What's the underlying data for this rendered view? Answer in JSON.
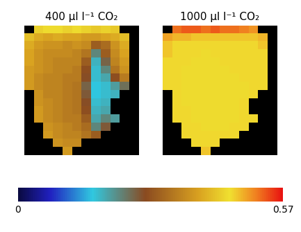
{
  "chart_data": [
    {
      "type": "heatmap",
      "title": "400 µl l⁻¹ CO₂",
      "tick_labels": false,
      "cells": [
        [
          null,
          0.44,
          0.45,
          0.45,
          0.44,
          0.45,
          0.44,
          0.43,
          0.44,
          0.43,
          null,
          null
        ],
        [
          0.42,
          0.4,
          0.39,
          0.4,
          0.39,
          0.39,
          0.38,
          0.38,
          0.39,
          0.4,
          0.42,
          null
        ],
        [
          0.4,
          0.38,
          0.37,
          0.37,
          0.36,
          0.37,
          0.36,
          0.3,
          0.32,
          0.37,
          0.4,
          null
        ],
        [
          0.39,
          0.37,
          0.36,
          0.36,
          0.36,
          0.35,
          0.33,
          0.22,
          0.3,
          0.36,
          0.39,
          null
        ],
        [
          0.39,
          0.37,
          0.36,
          0.35,
          0.35,
          0.35,
          0.3,
          0.18,
          0.25,
          0.35,
          0.38,
          null
        ],
        [
          0.38,
          0.37,
          0.36,
          0.35,
          0.35,
          0.34,
          0.28,
          0.17,
          0.22,
          0.33,
          0.37,
          null
        ],
        [
          0.38,
          0.36,
          0.35,
          0.35,
          0.34,
          0.34,
          0.27,
          0.17,
          0.19,
          0.28,
          0.34,
          null
        ],
        [
          0.38,
          0.36,
          0.35,
          0.35,
          0.34,
          0.33,
          0.25,
          0.16,
          0.17,
          0.2,
          0.24,
          null
        ],
        [
          null,
          0.37,
          0.35,
          0.35,
          0.34,
          0.33,
          0.26,
          0.16,
          0.17,
          0.18,
          null,
          null
        ],
        [
          null,
          0.37,
          0.36,
          0.35,
          0.34,
          0.33,
          0.27,
          0.17,
          0.18,
          null,
          null,
          null
        ],
        [
          null,
          0.38,
          0.36,
          0.35,
          0.34,
          0.33,
          0.28,
          0.18,
          0.19,
          null,
          null,
          null
        ],
        [
          null,
          0.38,
          0.36,
          0.35,
          0.34,
          0.34,
          0.3,
          0.19,
          0.22,
          0.2,
          null,
          null
        ],
        [
          null,
          null,
          0.37,
          0.36,
          0.35,
          0.34,
          0.32,
          0.22,
          0.26,
          null,
          null,
          null
        ],
        [
          null,
          null,
          0.38,
          0.36,
          0.35,
          0.35,
          0.33,
          0.3,
          null,
          null,
          null,
          null
        ],
        [
          null,
          null,
          null,
          0.37,
          0.36,
          0.36,
          null,
          null,
          null,
          null,
          null,
          null
        ],
        [
          null,
          null,
          null,
          null,
          0.38,
          null,
          null,
          null,
          null,
          null,
          null,
          null
        ]
      ]
    },
    {
      "type": "heatmap",
      "title": "1000 µl l⁻¹ CO₂",
      "tick_labels": false,
      "cells": [
        [
          null,
          0.52,
          0.53,
          0.53,
          0.52,
          0.53,
          0.52,
          0.52,
          0.51,
          0.5,
          null,
          null
        ],
        [
          0.49,
          0.48,
          0.48,
          0.47,
          0.47,
          0.47,
          0.47,
          0.47,
          0.47,
          0.47,
          0.48,
          null
        ],
        [
          0.47,
          0.46,
          0.46,
          0.46,
          0.46,
          0.46,
          0.46,
          0.46,
          0.46,
          0.46,
          0.47,
          null
        ],
        [
          0.47,
          0.46,
          0.46,
          0.46,
          0.45,
          0.46,
          0.46,
          0.46,
          0.46,
          0.46,
          0.46,
          null
        ],
        [
          0.46,
          0.46,
          0.46,
          0.45,
          0.45,
          0.45,
          0.46,
          0.46,
          0.46,
          0.46,
          0.46,
          null
        ],
        [
          0.46,
          0.46,
          0.45,
          0.45,
          0.45,
          0.45,
          0.45,
          0.46,
          0.46,
          0.46,
          0.46,
          null
        ],
        [
          0.46,
          0.46,
          0.45,
          0.45,
          0.45,
          0.45,
          0.45,
          0.45,
          0.46,
          0.46,
          0.46,
          null
        ],
        [
          0.46,
          0.46,
          0.45,
          0.45,
          0.45,
          0.45,
          0.45,
          0.45,
          0.45,
          0.46,
          0.46,
          null
        ],
        [
          null,
          0.46,
          0.45,
          0.45,
          0.45,
          0.45,
          0.45,
          0.45,
          0.45,
          0.46,
          null,
          null
        ],
        [
          null,
          0.46,
          0.45,
          0.45,
          0.45,
          0.45,
          0.45,
          0.45,
          0.46,
          null,
          null,
          null
        ],
        [
          null,
          0.46,
          0.46,
          0.45,
          0.45,
          0.45,
          0.45,
          0.45,
          0.46,
          null,
          null,
          null
        ],
        [
          null,
          0.46,
          0.46,
          0.45,
          0.45,
          0.45,
          0.45,
          0.45,
          0.46,
          0.46,
          null,
          null
        ],
        [
          null,
          null,
          0.46,
          0.46,
          0.45,
          0.45,
          0.45,
          0.46,
          0.46,
          null,
          null,
          null
        ],
        [
          null,
          null,
          0.46,
          0.46,
          0.46,
          0.46,
          0.46,
          0.46,
          null,
          null,
          null,
          null
        ],
        [
          null,
          null,
          null,
          0.46,
          0.46,
          0.46,
          null,
          null,
          null,
          null,
          null,
          null
        ],
        [
          null,
          null,
          null,
          null,
          0.47,
          null,
          null,
          null,
          null,
          null,
          null,
          null
        ]
      ]
    }
  ],
  "colorbar": {
    "range": [
      0,
      0.57
    ],
    "ticks": [
      0,
      0.57
    ]
  }
}
